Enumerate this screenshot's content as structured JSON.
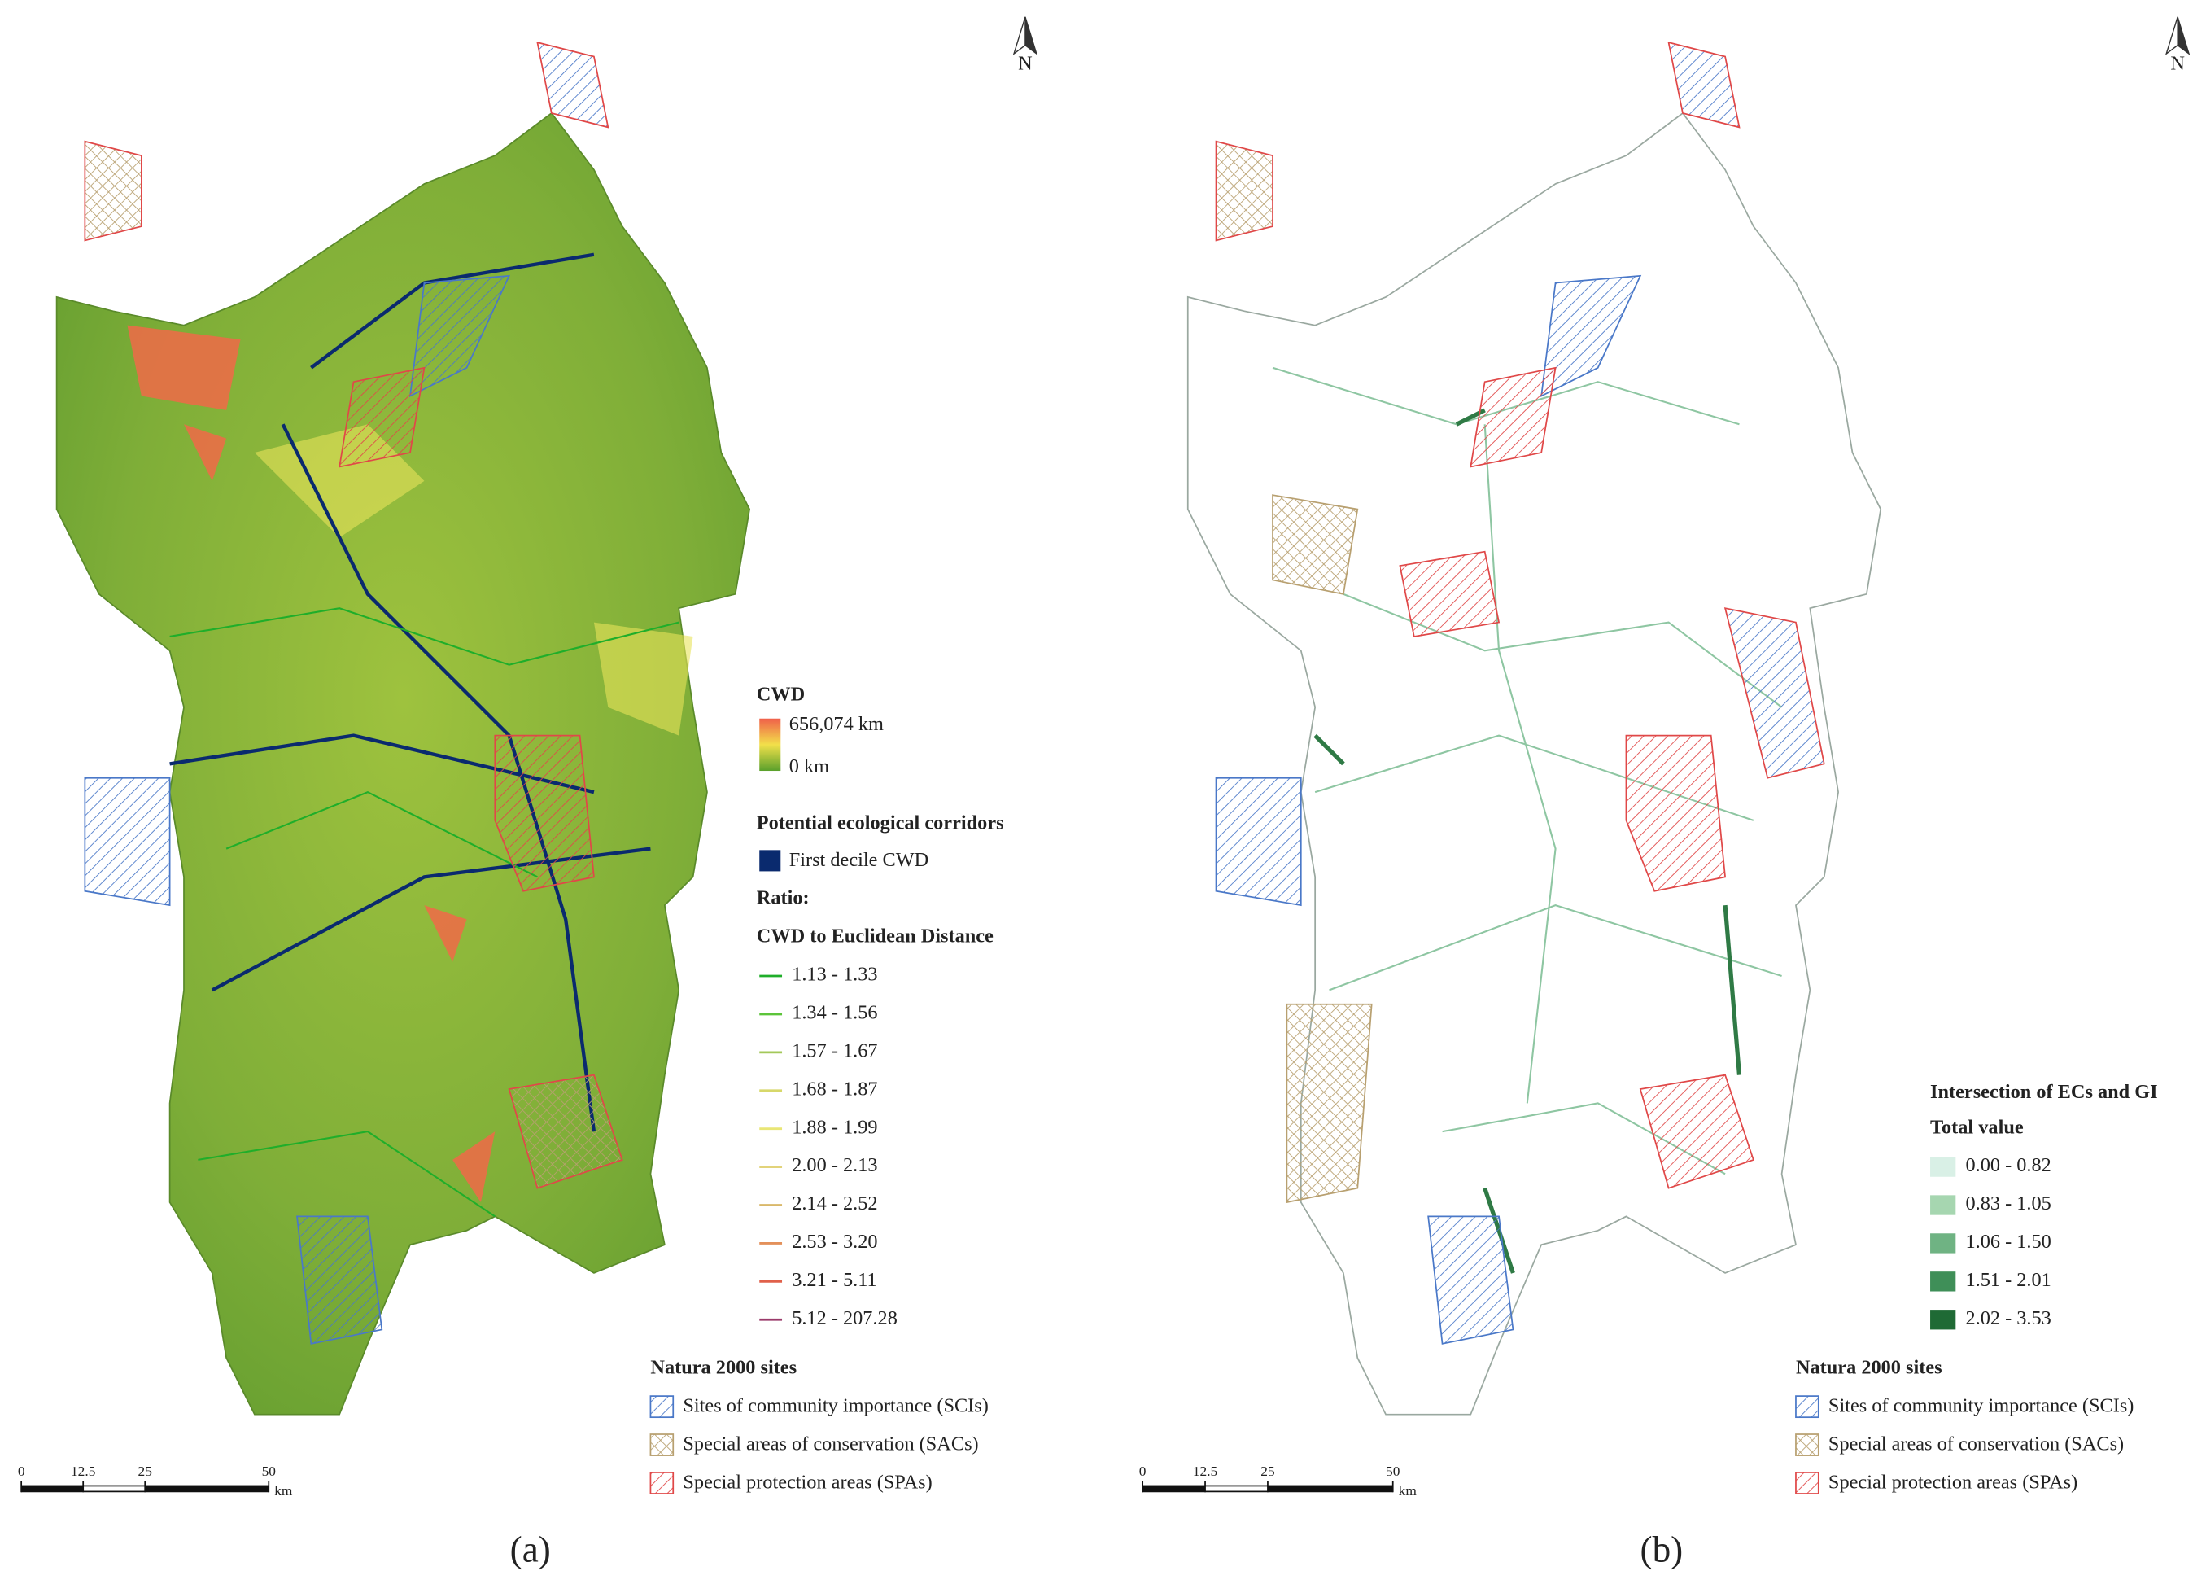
{
  "panel_a": {
    "label": "(a)",
    "north": "N",
    "cwd_legend": {
      "title": "CWD",
      "max": "656,074 km",
      "min": "0 km"
    },
    "corridors": {
      "title": "Potential ecological corridors",
      "item": "First decile CWD",
      "item_color": "#0a2a6e",
      "ratio_title": "Ratio:",
      "ratio_subtitle": "CWD to Euclidean Distance",
      "classes": [
        {
          "label": "1.13 - 1.33",
          "color": "#1fae2a"
        },
        {
          "label": "1.34 - 1.56",
          "color": "#5cc43a"
        },
        {
          "label": "1.57 - 1.67",
          "color": "#a3c85a"
        },
        {
          "label": "1.68 - 1.87",
          "color": "#d7d86a"
        },
        {
          "label": "1.88 - 1.99",
          "color": "#e9e675"
        },
        {
          "label": "2.00 - 2.13",
          "color": "#e2d37a"
        },
        {
          "label": "2.14 - 2.52",
          "color": "#d9b86a"
        },
        {
          "label": "2.53 - 3.20",
          "color": "#e3905a"
        },
        {
          "label": "3.21 - 5.11",
          "color": "#e0604a"
        },
        {
          "label": "5.12 - 207.28",
          "color": "#9a3a6a"
        }
      ]
    },
    "natura": {
      "title": "Natura 2000 sites",
      "items": [
        {
          "label": "Sites of community importance (SCIs)",
          "color": "#4a78c8"
        },
        {
          "label": "Special areas of conservation (SACs)",
          "color": "#b8a070"
        },
        {
          "label": "Special protection areas (SPAs)",
          "color": "#e04848"
        }
      ]
    },
    "scale": {
      "ticks": [
        0,
        12.5,
        25,
        50
      ],
      "unit": "km"
    }
  },
  "panel_b": {
    "label": "(b)",
    "north": "N",
    "intersection": {
      "title": "Intersection of ECs and GI",
      "subtitle": "Total value",
      "classes": [
        {
          "label": "0.00 - 0.82",
          "color": "#d9f0e6"
        },
        {
          "label": "0.83 - 1.05",
          "color": "#a6d6b0"
        },
        {
          "label": "1.06 - 1.50",
          "color": "#6fb383"
        },
        {
          "label": "1.51 - 2.01",
          "color": "#3f8f58"
        },
        {
          "label": "2.02 - 3.53",
          "color": "#1f6a35"
        }
      ]
    },
    "natura": {
      "title": "Natura 2000 sites",
      "items": [
        {
          "label": "Sites of community importance (SCIs)",
          "color": "#4a78c8"
        },
        {
          "label": "Special areas of conservation (SACs)",
          "color": "#b8a070"
        },
        {
          "label": "Special protection areas (SPAs)",
          "color": "#e04848"
        }
      ]
    },
    "scale": {
      "ticks": [
        0,
        12.5,
        25,
        50
      ],
      "unit": "km"
    }
  }
}
